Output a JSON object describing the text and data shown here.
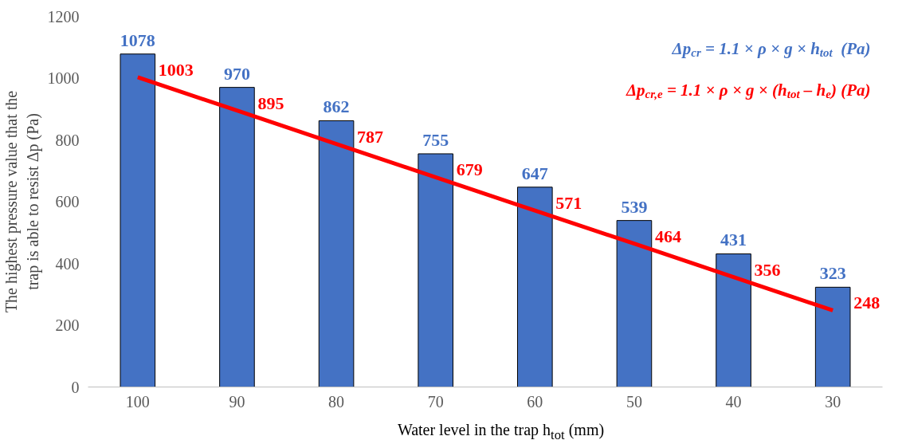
{
  "chart_data": {
    "type": "bar",
    "categories": [
      "100",
      "90",
      "80",
      "70",
      "60",
      "50",
      "40",
      "30"
    ],
    "xlabel": "Water level in the trap h$_{tot}$ (mm)",
    "ylabel": "The highest pressure value that the\ntrap is able to resist Δp (Pa)",
    "ylim": [
      0,
      1200
    ],
    "yticks": [
      0,
      200,
      400,
      600,
      800,
      1000,
      1200
    ],
    "grid": false,
    "legend": "top right",
    "data_labels": true,
    "series": [
      {
        "name": "Δp$_{cr}$ = 1.1 × ρ × g × h$_{tot}$  (Pa)",
        "color": "#4472c4",
        "values": [
          1078,
          970,
          862,
          755,
          647,
          539,
          431,
          323
        ]
      },
      {
        "name": "Δp$_{cr,e}$ = 1.1 × ρ × g × (h$_{tot}$ – h$_{e}$) (Pa)",
        "type": "line",
        "color": "#ff0000",
        "values": [
          1003,
          895,
          787,
          679,
          571,
          464,
          356,
          248
        ]
      }
    ]
  }
}
